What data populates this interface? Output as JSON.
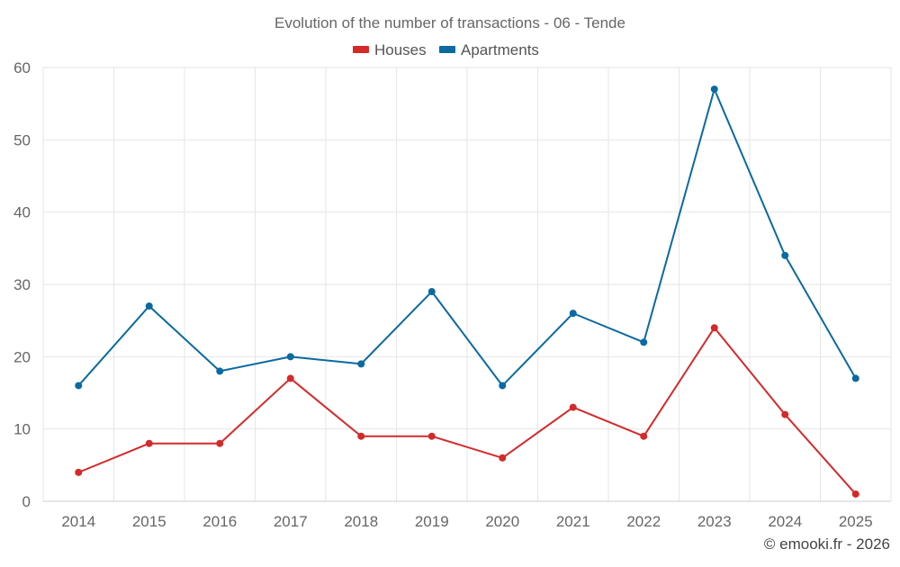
{
  "chart_data": {
    "type": "line",
    "title": "Evolution of the number of transactions - 06 - Tende",
    "categories": [
      "2014",
      "2015",
      "2016",
      "2017",
      "2018",
      "2019",
      "2020",
      "2021",
      "2022",
      "2023",
      "2024",
      "2025"
    ],
    "series": [
      {
        "name": "Houses",
        "color": "#d42a2a",
        "values": [
          4,
          8,
          8,
          17,
          9,
          9,
          6,
          13,
          9,
          24,
          12,
          1
        ]
      },
      {
        "name": "Apartments",
        "color": "#0a6aa1",
        "values": [
          16,
          27,
          18,
          20,
          19,
          29,
          16,
          26,
          22,
          57,
          34,
          17
        ]
      }
    ],
    "y_ticks": [
      "0",
      "10",
      "20",
      "30",
      "40",
      "50",
      "60"
    ],
    "ylim": [
      0,
      60
    ],
    "xlabel": "",
    "ylabel": "",
    "grid": true,
    "legend_position": "top-center"
  },
  "credit": "© emooki.fr - 2026"
}
